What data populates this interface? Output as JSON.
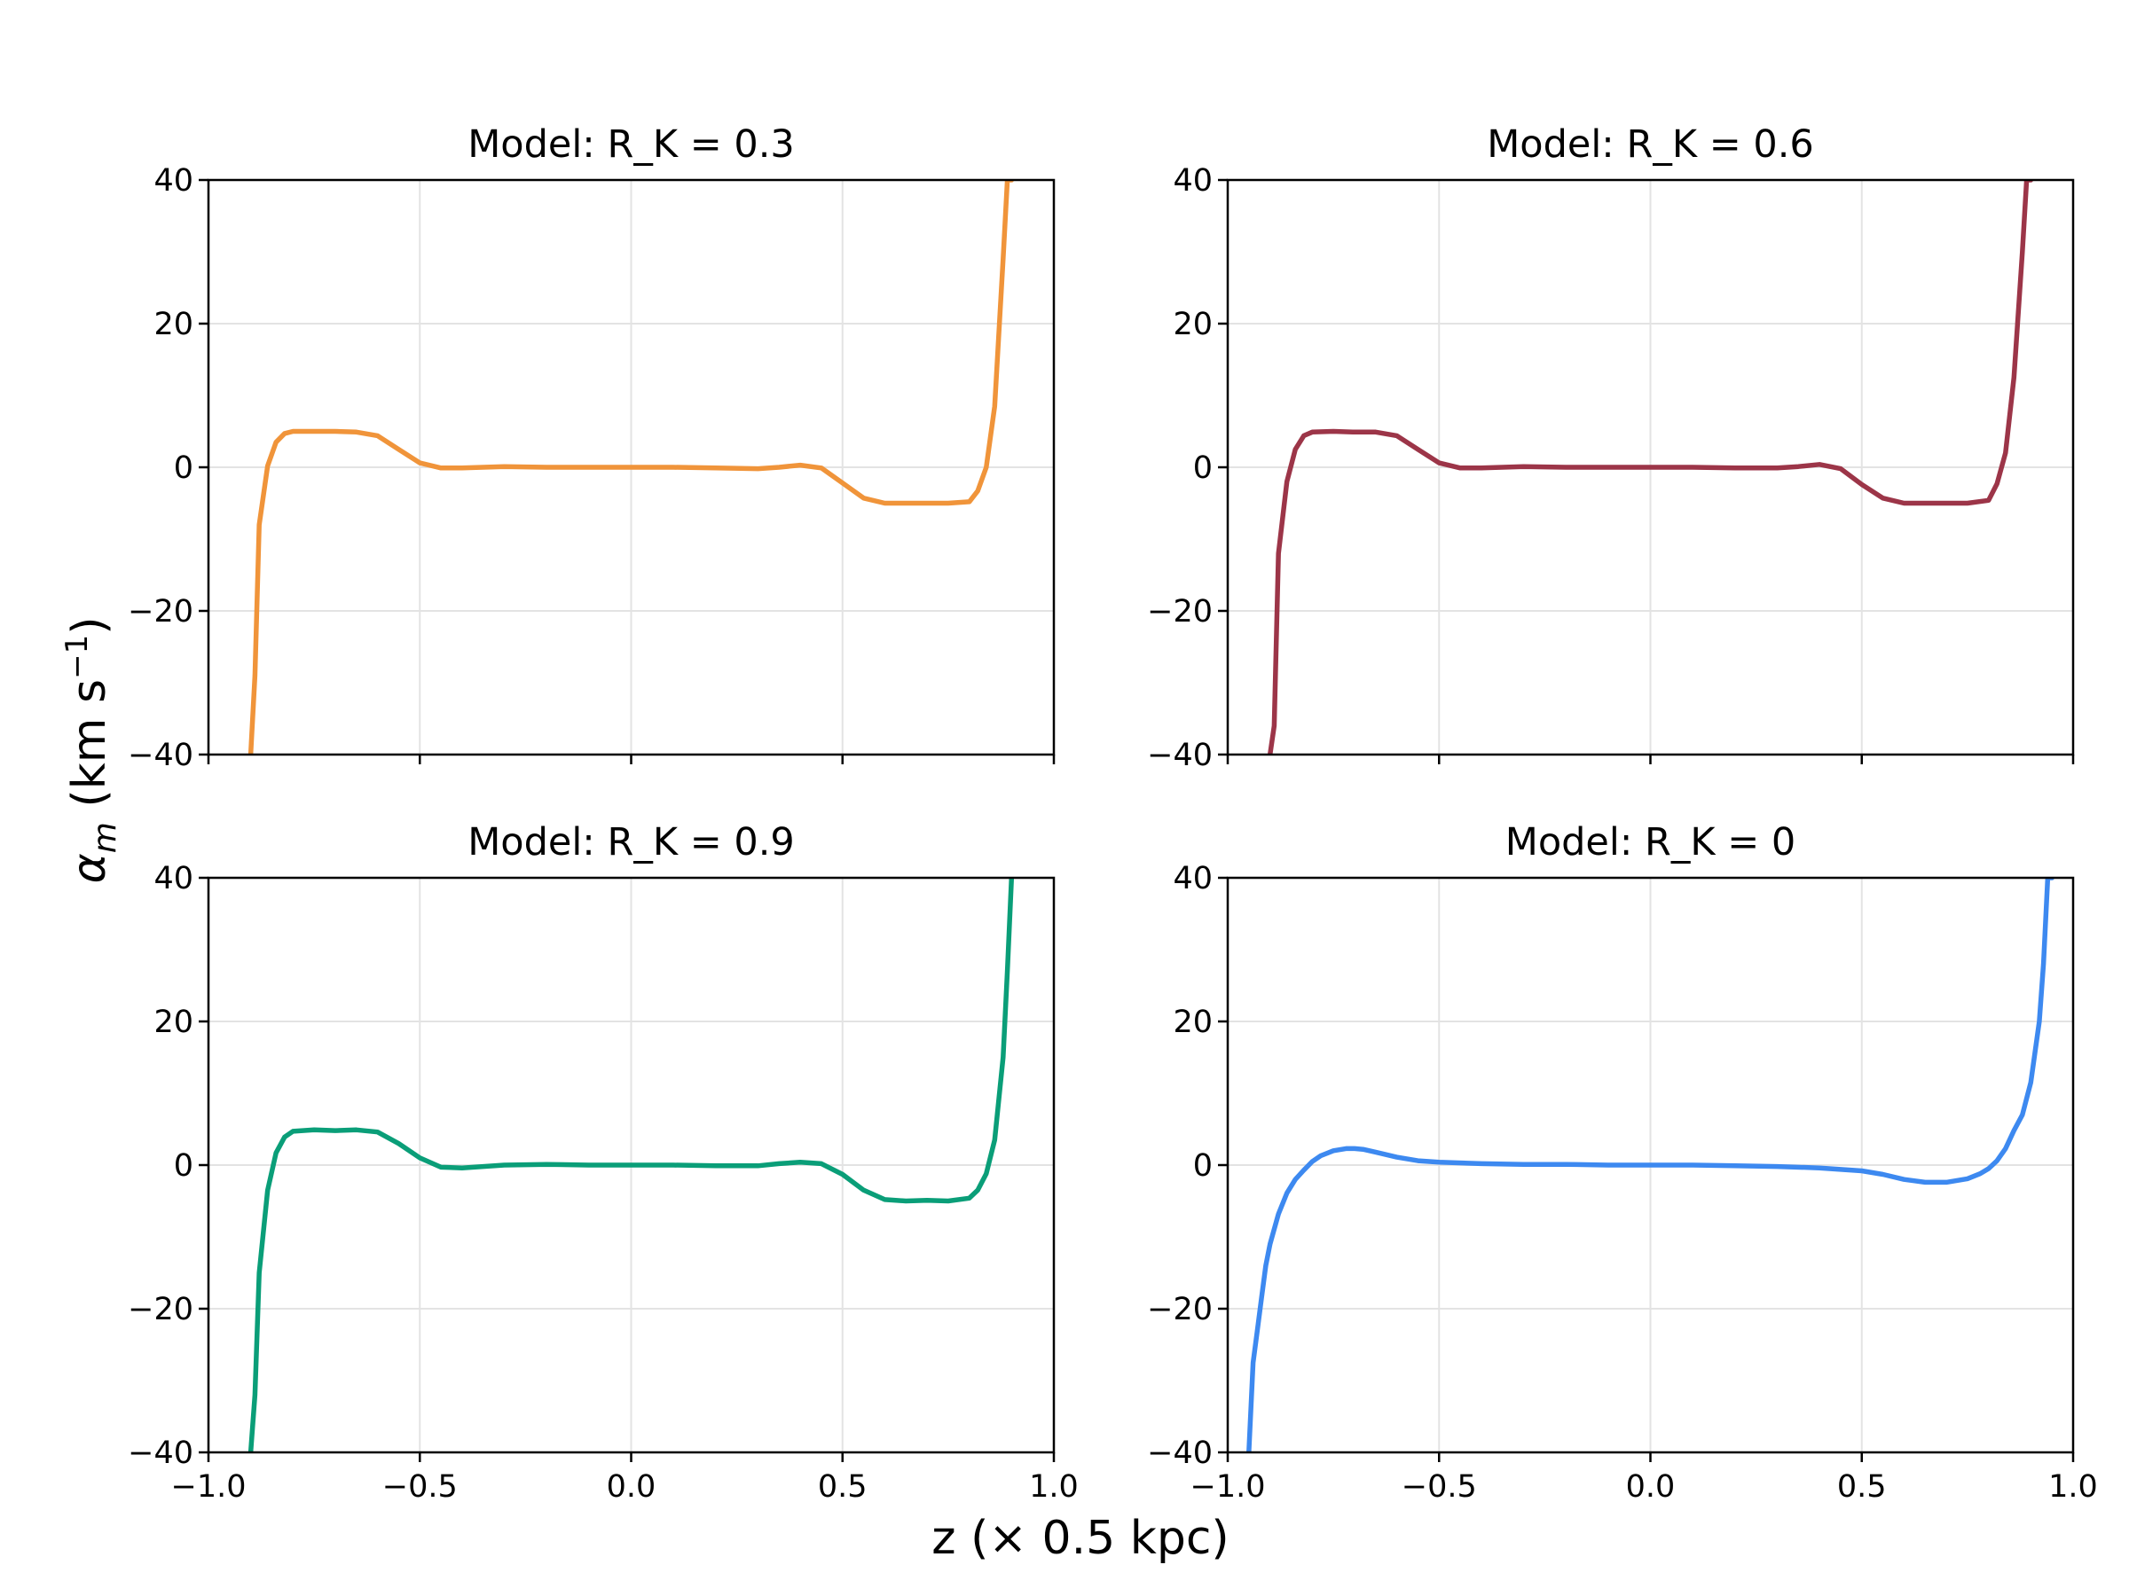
{
  "figure": {
    "xlabel": "z (× 0.5 kpc)",
    "ylabel_symbol": "α",
    "ylabel_subscript": "m",
    "ylabel_units_open": " (km s",
    "ylabel_units_exp": "−1",
    "ylabel_units_close": ")"
  },
  "chart_data": [
    {
      "type": "line",
      "title": "Model: R_K = 0.3",
      "color": "#f0943a",
      "xlim": [
        -1.0,
        1.0
      ],
      "ylim": [
        -40,
        40
      ],
      "xticks": [
        "−1.0",
        "−0.5",
        "0.0",
        "0.5",
        "1.0"
      ],
      "yticks": [
        "−40",
        "−20",
        "0",
        "20",
        "40"
      ],
      "show_xtick_labels": false,
      "grid": true,
      "x": [
        -0.9,
        -0.89,
        -0.88,
        -0.86,
        -0.84,
        -0.82,
        -0.8,
        -0.75,
        -0.7,
        -0.65,
        -0.6,
        -0.55,
        -0.5,
        -0.45,
        -0.4,
        -0.3,
        -0.2,
        -0.1,
        0.0,
        0.1,
        0.2,
        0.3,
        0.35,
        0.4,
        0.45,
        0.5,
        0.55,
        0.6,
        0.65,
        0.7,
        0.75,
        0.8,
        0.82,
        0.84,
        0.86,
        0.88,
        0.89,
        0.9
      ],
      "y": [
        -40,
        -29,
        -8,
        0.2,
        3.5,
        4.7,
        5.0,
        5.0,
        5.0,
        4.9,
        4.4,
        2.5,
        0.6,
        -0.1,
        -0.1,
        0.1,
        0.0,
        0.0,
        0.0,
        0.0,
        -0.1,
        -0.2,
        0.0,
        0.3,
        -0.1,
        -2.2,
        -4.3,
        -5.0,
        -5.0,
        -5.0,
        -5.0,
        -4.8,
        -3.3,
        0.0,
        8.5,
        29,
        40,
        40
      ]
    },
    {
      "type": "line",
      "title": "Model: R_K = 0.6",
      "color": "#9c3548",
      "xlim": [
        -1.0,
        1.0
      ],
      "ylim": [
        -40,
        40
      ],
      "xticks": [
        "−1.0",
        "−0.5",
        "0.0",
        "0.5",
        "1.0"
      ],
      "yticks": [
        "−40",
        "−20",
        "0",
        "20",
        "40"
      ],
      "show_xtick_labels": false,
      "grid": true,
      "x": [
        -0.9,
        -0.89,
        -0.88,
        -0.86,
        -0.84,
        -0.82,
        -0.8,
        -0.75,
        -0.7,
        -0.65,
        -0.6,
        -0.55,
        -0.5,
        -0.45,
        -0.4,
        -0.3,
        -0.2,
        -0.1,
        0.0,
        0.1,
        0.2,
        0.3,
        0.35,
        0.4,
        0.45,
        0.5,
        0.55,
        0.6,
        0.65,
        0.7,
        0.75,
        0.8,
        0.82,
        0.84,
        0.86,
        0.88,
        0.89,
        0.9
      ],
      "y": [
        -40,
        -36,
        -12,
        -2,
        2.5,
        4.4,
        4.9,
        5.0,
        4.9,
        4.9,
        4.4,
        2.5,
        0.6,
        -0.1,
        -0.1,
        0.1,
        0.0,
        0.0,
        0.0,
        0.0,
        -0.1,
        -0.1,
        0.1,
        0.4,
        -0.2,
        -2.4,
        -4.3,
        -5.0,
        -5.0,
        -5.0,
        -5.0,
        -4.6,
        -2.3,
        2.0,
        12.5,
        30,
        40,
        40
      ]
    },
    {
      "type": "line",
      "title": "Model: R_K = 0.9",
      "color": "#0a9e78",
      "xlim": [
        -1.0,
        1.0
      ],
      "ylim": [
        -40,
        40
      ],
      "xticks": [
        "−1.0",
        "−0.5",
        "0.0",
        "0.5",
        "1.0"
      ],
      "yticks": [
        "−40",
        "−20",
        "0",
        "20",
        "40"
      ],
      "show_xtick_labels": true,
      "grid": true,
      "x": [
        -0.9,
        -0.89,
        -0.88,
        -0.86,
        -0.84,
        -0.82,
        -0.8,
        -0.75,
        -0.7,
        -0.65,
        -0.6,
        -0.55,
        -0.5,
        -0.45,
        -0.4,
        -0.3,
        -0.2,
        -0.1,
        0.0,
        0.1,
        0.2,
        0.3,
        0.35,
        0.4,
        0.45,
        0.5,
        0.55,
        0.6,
        0.65,
        0.7,
        0.75,
        0.8,
        0.82,
        0.84,
        0.86,
        0.88,
        0.89,
        0.9
      ],
      "y": [
        -40,
        -32,
        -15,
        -3.5,
        1.7,
        3.9,
        4.7,
        4.9,
        4.8,
        4.9,
        4.6,
        3.0,
        1.0,
        -0.3,
        -0.4,
        0.0,
        0.1,
        0.0,
        0.0,
        0.0,
        -0.1,
        -0.1,
        0.2,
        0.4,
        0.2,
        -1.3,
        -3.5,
        -4.8,
        -5.0,
        -4.9,
        -5.0,
        -4.6,
        -3.5,
        -1.2,
        3.5,
        15,
        27,
        40
      ]
    },
    {
      "type": "line",
      "title": "Model: R_K = 0",
      "color": "#3d89f0",
      "xlim": [
        -1.0,
        1.0
      ],
      "ylim": [
        -40,
        40
      ],
      "xticks": [
        "−1.0",
        "−0.5",
        "0.0",
        "0.5",
        "1.0"
      ],
      "yticks": [
        "−40",
        "−20",
        "0",
        "20",
        "40"
      ],
      "show_xtick_labels": true,
      "grid": true,
      "x": [
        -0.95,
        -0.94,
        -0.93,
        -0.92,
        -0.91,
        -0.9,
        -0.88,
        -0.86,
        -0.84,
        -0.82,
        -0.8,
        -0.78,
        -0.75,
        -0.72,
        -0.7,
        -0.68,
        -0.65,
        -0.6,
        -0.55,
        -0.5,
        -0.4,
        -0.3,
        -0.2,
        -0.1,
        0.0,
        0.1,
        0.2,
        0.3,
        0.4,
        0.5,
        0.55,
        0.6,
        0.65,
        0.7,
        0.75,
        0.78,
        0.8,
        0.82,
        0.84,
        0.86,
        0.88,
        0.9,
        0.92,
        0.93,
        0.94,
        0.95
      ],
      "y": [
        -40,
        -27.5,
        -23,
        -18.5,
        -14,
        -11,
        -6.8,
        -3.9,
        -2.0,
        -0.7,
        0.5,
        1.3,
        2.0,
        2.3,
        2.3,
        2.2,
        1.8,
        1.1,
        0.6,
        0.4,
        0.2,
        0.1,
        0.1,
        0.0,
        0.0,
        0.0,
        -0.1,
        -0.2,
        -0.4,
        -0.8,
        -1.3,
        -2.0,
        -2.4,
        -2.4,
        -1.9,
        -1.2,
        -0.5,
        0.6,
        2.3,
        4.8,
        7.0,
        11.5,
        20,
        28,
        40,
        40
      ]
    }
  ]
}
